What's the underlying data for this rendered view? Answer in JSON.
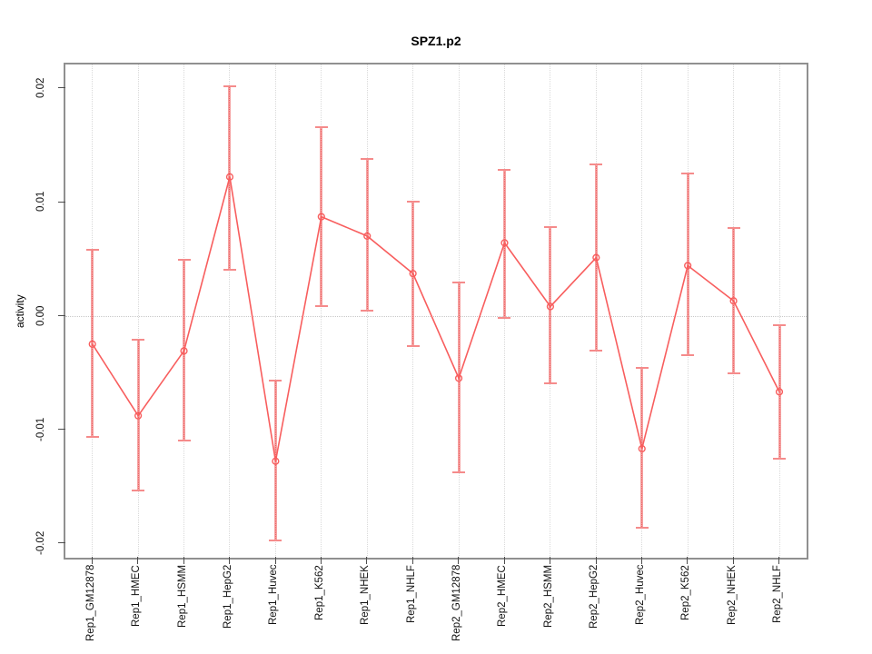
{
  "title": "SPZ1.p2",
  "ylabel": "activity",
  "colors": {
    "series_line": "#f85e5e",
    "marker_stroke": "#f85e5e",
    "errorbar_fill": "#f5a2a2",
    "errorbar_cap": "#f58b8b",
    "errorbar_dotted": "#ee6262",
    "gridline": "#d9d9d9",
    "zero_line": "#c9c9c9",
    "plot_border": "#909090",
    "tick": "#4d4d4d",
    "text": "#000000"
  },
  "chart_data": {
    "type": "line",
    "title": "SPZ1.p2",
    "xlabel": "",
    "ylabel": "activity",
    "marker": "open-circle",
    "legend": "none",
    "grid": "vertical dotted gridline at each category; dotted horizontal line at y=0",
    "ylim": [
      -0.0213,
      0.0222
    ],
    "ytick_values": [
      0.02,
      0.01,
      0.0,
      -0.01,
      -0.02
    ],
    "ytick_labels": [
      "0.02",
      "0.01",
      "0.00",
      "-0.01",
      "-0.02"
    ],
    "categories": [
      "Rep1_GM12878",
      "Rep1_HMEC",
      "Rep1_HSMM",
      "Rep1_HepG2",
      "Rep1_Huvec",
      "Rep1_K562",
      "Rep1_NHEK",
      "Rep1_NHLF",
      "Rep2_GM12878",
      "Rep2_HMEC",
      "Rep2_HSMM",
      "Rep2_HepG2",
      "Rep2_Huvec",
      "Rep2_K562",
      "Rep2_NHEK",
      "Rep2_NHLF"
    ],
    "series": [
      {
        "name": "activity",
        "values": [
          -0.0025,
          -0.0088,
          -0.0031,
          0.0122,
          -0.0128,
          0.0087,
          0.007,
          0.0037,
          -0.0055,
          0.0064,
          0.0008,
          0.0051,
          -0.0117,
          0.0044,
          0.0013,
          -0.0067
        ],
        "error_low": [
          -0.0107,
          -0.0154,
          -0.011,
          0.004,
          -0.0198,
          0.0008,
          0.0004,
          -0.0027,
          -0.0138,
          -0.0002,
          -0.006,
          -0.0031,
          -0.0187,
          -0.0035,
          -0.0051,
          -0.0126
        ],
        "error_high": [
          0.0058,
          -0.0021,
          0.0049,
          0.0202,
          -0.0057,
          0.0166,
          0.0138,
          0.01,
          0.0029,
          0.0128,
          0.0078,
          0.0133,
          -0.0046,
          0.0125,
          0.0077,
          -0.0008
        ]
      }
    ]
  }
}
